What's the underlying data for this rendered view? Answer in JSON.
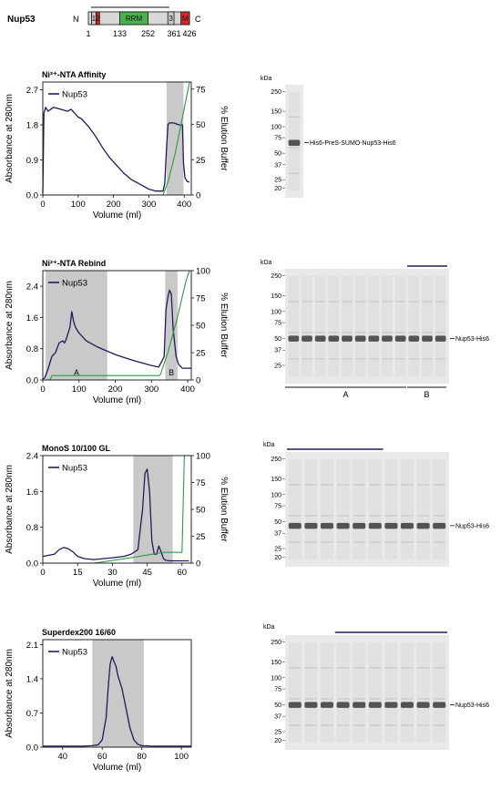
{
  "protein": {
    "label": "Nup53",
    "n_label": "N",
    "c_label": "C",
    "domains": [
      {
        "label": "1",
        "start": 14,
        "end": 33,
        "color": "#c8c8c8"
      },
      {
        "label": "2",
        "start": 33,
        "end": 48,
        "color": "#d42a2a"
      },
      {
        "label": "RRM",
        "start": 133,
        "end": 252,
        "color": "#4caf50"
      },
      {
        "label": "3",
        "start": 335,
        "end": 361,
        "color": "#c8c8c8"
      },
      {
        "label": "M",
        "start": 390,
        "end": 426,
        "color": "#d42a2a"
      }
    ],
    "positions": [
      {
        "label": "1",
        "value": 1
      },
      {
        "label": "133",
        "value": 133
      },
      {
        "label": "252",
        "value": 252
      },
      {
        "label": "361",
        "value": 361
      },
      {
        "label": "426",
        "value": 426
      }
    ],
    "length": 426
  },
  "colors": {
    "trace": "#1f1b5c",
    "gradient": "#2e9a45",
    "shade": "#c9c9c9",
    "gel_bg": "#e9e9e9",
    "band": "#3a3a3a"
  },
  "chart_data": [
    {
      "type": "line",
      "title": "Ni²⁺-NTA Affinity",
      "xlabel": "Volume (ml)",
      "ylabel": "Absorbance at 280nm",
      "y2label": "% Elution Buffer",
      "xlim": [
        0,
        420
      ],
      "ylim": [
        0,
        2.9
      ],
      "y2lim": [
        0,
        80
      ],
      "xticks": [
        "0",
        "100",
        "200",
        "300",
        "400"
      ],
      "xtick_values": [
        0,
        100,
        200,
        300,
        400
      ],
      "yticks": [
        "0.0",
        "0.9",
        "1.8",
        "2.7"
      ],
      "ytick_values": [
        0,
        0.9,
        1.8,
        2.7
      ],
      "y2ticks": [
        "0",
        "25",
        "50",
        "75"
      ],
      "y2tick_values": [
        0,
        25,
        50,
        75
      ],
      "legend": "top-left",
      "series": [
        {
          "name": "Nup53",
          "axis": "left",
          "x": [
            0,
            3,
            8,
            15,
            30,
            50,
            70,
            80,
            100,
            110,
            130,
            150,
            170,
            190,
            210,
            230,
            250,
            270,
            290,
            300,
            320,
            340,
            345,
            350,
            354,
            358,
            370,
            385,
            395,
            398,
            402,
            408,
            415
          ],
          "y": [
            0.05,
            2.1,
            2.25,
            2.15,
            2.25,
            2.2,
            2.15,
            2.2,
            2.0,
            1.95,
            1.75,
            1.5,
            1.2,
            0.95,
            0.75,
            0.55,
            0.4,
            0.3,
            0.2,
            0.15,
            0.1,
            0.1,
            0.3,
            1.2,
            1.8,
            1.85,
            1.85,
            1.8,
            1.8,
            0.8,
            0.45,
            0.35,
            0.33
          ]
        },
        {
          "name": "",
          "axis": "right",
          "style": "gradient",
          "x": [
            0,
            340,
            355,
            375,
            395,
            415
          ],
          "y": [
            0,
            0,
            10,
            30,
            55,
            80
          ]
        }
      ],
      "shaded": [
        {
          "from": 350,
          "to": 398,
          "label": ""
        }
      ]
    },
    {
      "type": "line",
      "title": "Ni²⁺-NTA Rebind",
      "xlabel": "Volume (ml)",
      "ylabel": "Absorbance at 280nm",
      "y2label": "% Elution Buffer",
      "xlim": [
        0,
        410
      ],
      "ylim": [
        0,
        2.8
      ],
      "y2lim": [
        0,
        100
      ],
      "xticks": [
        "0",
        "100",
        "200",
        "300",
        "400"
      ],
      "xtick_values": [
        0,
        100,
        200,
        300,
        400
      ],
      "yticks": [
        "0.0",
        "0.8",
        "1.6",
        "2.4"
      ],
      "ytick_values": [
        0,
        0.8,
        1.6,
        2.4
      ],
      "y2ticks": [
        "0",
        "25",
        "50",
        "75",
        "100"
      ],
      "y2tick_values": [
        0,
        25,
        50,
        75,
        100
      ],
      "legend": "top-left",
      "series": [
        {
          "name": "Nup53",
          "axis": "left",
          "x": [
            0,
            5,
            15,
            25,
            35,
            45,
            55,
            60,
            65,
            70,
            75,
            80,
            85,
            90,
            100,
            120,
            150,
            200,
            250,
            300,
            320,
            335,
            340,
            345,
            350,
            355,
            360,
            368,
            375,
            385,
            395,
            410
          ],
          "y": [
            0.02,
            0.05,
            0.3,
            0.6,
            0.7,
            0.95,
            1.0,
            0.95,
            1.05,
            1.2,
            1.35,
            1.75,
            1.5,
            1.35,
            1.2,
            1.0,
            0.85,
            0.65,
            0.5,
            0.37,
            0.33,
            0.6,
            1.8,
            2.1,
            2.3,
            2.2,
            1.3,
            0.6,
            0.4,
            0.3,
            0.3,
            0.3
          ]
        },
        {
          "name": "",
          "axis": "right",
          "style": "gradient",
          "x": [
            0,
            20,
            25,
            320,
            325,
            345,
            370,
            395,
            405
          ],
          "y": [
            0,
            0,
            4,
            4,
            5,
            25,
            55,
            90,
            100
          ]
        }
      ],
      "shaded": [
        {
          "from": 8,
          "to": 178,
          "label": "A"
        },
        {
          "from": 338,
          "to": 372,
          "label": "B"
        }
      ]
    },
    {
      "type": "line",
      "title": "MonoS 10/100 GL",
      "xlabel": "Volume (ml)",
      "ylabel": "Absorbance at 280nm",
      "y2label": "% Elution Buffer",
      "xlim": [
        0,
        64
      ],
      "ylim": [
        0,
        2.4
      ],
      "y2lim": [
        0,
        100
      ],
      "xticks": [
        "0",
        "15",
        "30",
        "45",
        "60"
      ],
      "xtick_values": [
        0,
        15,
        30,
        45,
        60
      ],
      "yticks": [
        "0.0",
        "0.8",
        "1.6",
        "2.4"
      ],
      "ytick_values": [
        0,
        0.8,
        1.6,
        2.4
      ],
      "y2ticks": [
        "0",
        "25",
        "50",
        "75",
        "100"
      ],
      "y2tick_values": [
        0,
        25,
        50,
        75,
        100
      ],
      "legend": "top-left",
      "series": [
        {
          "name": "Nup53",
          "axis": "left",
          "x": [
            0,
            3,
            5,
            7,
            9,
            11,
            13,
            15,
            18,
            22,
            26,
            30,
            35,
            38,
            41,
            43,
            44,
            45,
            46,
            47,
            48,
            49,
            50,
            51,
            52,
            53,
            55,
            58,
            61,
            63
          ],
          "y": [
            0.15,
            0.18,
            0.2,
            0.3,
            0.35,
            0.32,
            0.25,
            0.15,
            0.1,
            0.08,
            0.1,
            0.12,
            0.15,
            0.2,
            0.3,
            1.2,
            2.0,
            2.1,
            1.6,
            0.5,
            0.2,
            0.2,
            0.38,
            0.25,
            0.1,
            0.06,
            0.05,
            0.05,
            0.05,
            0.05
          ]
        },
        {
          "name": "",
          "axis": "right",
          "style": "gradient",
          "x": [
            0,
            22,
            38,
            52,
            55,
            58,
            60,
            61,
            64
          ],
          "y": [
            0,
            0,
            5,
            10,
            10,
            10,
            10,
            100,
            100
          ]
        }
      ],
      "shaded": [
        {
          "from": 39,
          "to": 56,
          "label": ""
        }
      ]
    },
    {
      "type": "line",
      "title": "Superdex200 16/60",
      "xlabel": "Volume (ml)",
      "ylabel": "Absorbance at 280nm",
      "xlim": [
        30,
        105
      ],
      "ylim": [
        0,
        2.2
      ],
      "xticks": [
        "40",
        "60",
        "80",
        "100"
      ],
      "xtick_values": [
        40,
        60,
        80,
        100
      ],
      "yticks": [
        "0.0",
        "0.7",
        "1.4",
        "2.1"
      ],
      "ytick_values": [
        0,
        0.7,
        1.4,
        2.1
      ],
      "legend": "top-left",
      "series": [
        {
          "name": "Nup53",
          "axis": "left",
          "x": [
            30,
            50,
            55,
            58,
            60,
            62,
            63,
            64,
            65,
            66,
            67,
            68,
            70,
            72,
            74,
            76,
            78,
            80,
            85,
            95,
            105
          ],
          "y": [
            0.02,
            0.02,
            0.03,
            0.05,
            0.15,
            0.6,
            1.2,
            1.7,
            1.85,
            1.75,
            1.65,
            1.45,
            1.2,
            0.8,
            0.4,
            0.15,
            0.06,
            0.03,
            0.02,
            0.02,
            0.02
          ]
        }
      ],
      "shaded": [
        {
          "from": 55,
          "to": 81,
          "label": ""
        }
      ]
    }
  ],
  "gels": [
    {
      "kda_label": "kDa",
      "markers": [
        {
          "label": "250",
          "value": 250
        },
        {
          "label": "150",
          "value": 150
        },
        {
          "label": "100",
          "value": 100
        },
        {
          "label": "75",
          "value": 75
        },
        {
          "label": "50",
          "value": 50
        },
        {
          "label": "37",
          "value": 37
        },
        {
          "label": "25",
          "value": 25
        },
        {
          "label": "20",
          "value": 20
        }
      ],
      "lanes": 1,
      "band_kda": 66,
      "band_label": "His6-PreS-SUMO-Nup53-His6",
      "groups": []
    },
    {
      "kda_label": "kDa",
      "markers": [
        {
          "label": "250",
          "value": 250
        },
        {
          "label": "150",
          "value": 150
        },
        {
          "label": "100",
          "value": 100
        },
        {
          "label": "75",
          "value": 75
        },
        {
          "label": "50",
          "value": 50
        },
        {
          "label": "37",
          "value": 37
        },
        {
          "label": "25",
          "value": 25
        }
      ],
      "lanes": 12,
      "band_kda": 50,
      "band_label": "Nup53-His6",
      "groups": [
        {
          "label": "A",
          "from_lane": 0,
          "to_lane": 8,
          "position": "bottom"
        },
        {
          "label": "B",
          "from_lane": 9,
          "to_lane": 11,
          "position": "bottom"
        }
      ],
      "top_bar": {
        "from_lane": 9,
        "to_lane": 11
      }
    },
    {
      "kda_label": "kDa",
      "markers": [
        {
          "label": "250",
          "value": 250
        },
        {
          "label": "150",
          "value": 150
        },
        {
          "label": "100",
          "value": 100
        },
        {
          "label": "75",
          "value": 75
        },
        {
          "label": "50",
          "value": 50
        },
        {
          "label": "37",
          "value": 37
        },
        {
          "label": "25",
          "value": 25
        },
        {
          "label": "20",
          "value": 20
        }
      ],
      "lanes": 10,
      "band_kda": 45,
      "band_label": "Nup53-His6",
      "groups": [],
      "top_bar": {
        "from_lane": 0,
        "to_lane": 5
      }
    },
    {
      "kda_label": "kDa",
      "markers": [
        {
          "label": "250",
          "value": 250
        },
        {
          "label": "150",
          "value": 150
        },
        {
          "label": "100",
          "value": 100
        },
        {
          "label": "75",
          "value": 75
        },
        {
          "label": "50",
          "value": 50
        },
        {
          "label": "37",
          "value": 37
        },
        {
          "label": "25",
          "value": 25
        },
        {
          "label": "20",
          "value": 20
        }
      ],
      "lanes": 10,
      "band_kda": 50,
      "band_label": "Nup53-His6",
      "groups": [],
      "top_bar": {
        "from_lane": 3,
        "to_lane": 9
      }
    }
  ]
}
